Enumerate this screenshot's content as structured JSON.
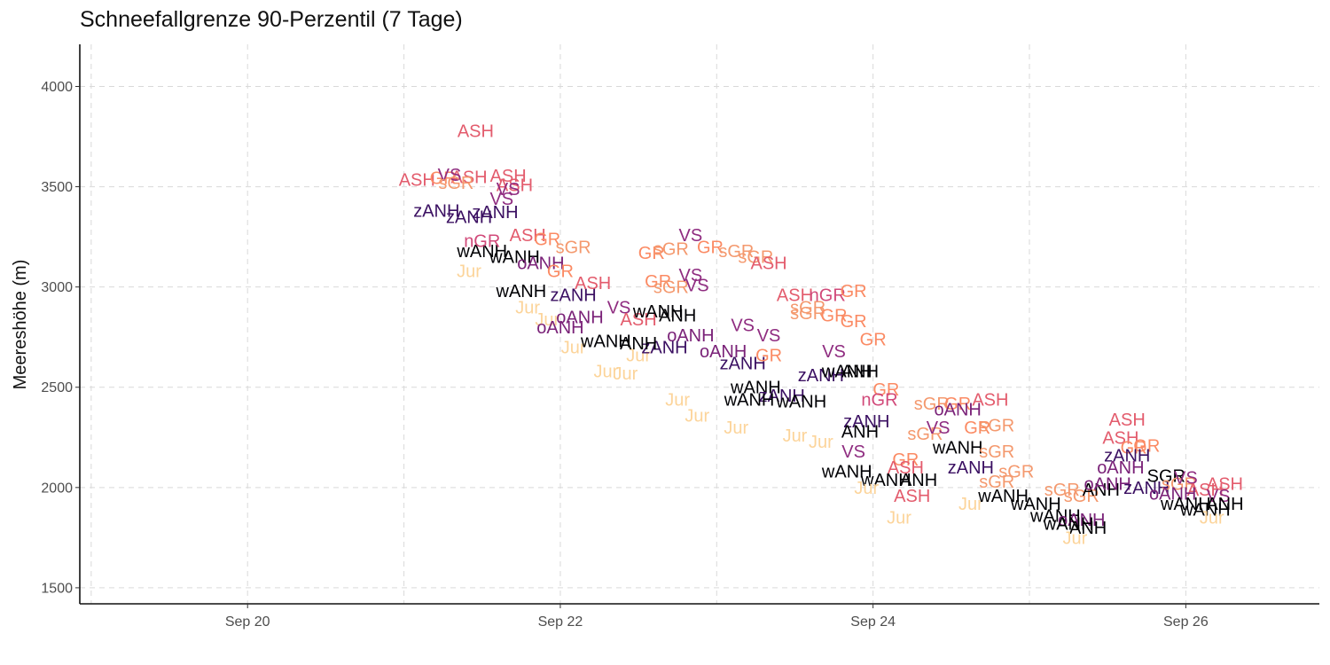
{
  "chart_data": {
    "type": "scatter",
    "title": "Schneefallgrenze 90-Perzentil (7 Tage)",
    "xlabel": "",
    "ylabel": "Meereshöhe (m)",
    "x_ticks": [
      "Sep 20",
      "Sep 22",
      "Sep 24",
      "Sep 26"
    ],
    "y_ticks": [
      1500,
      2000,
      2500,
      3000,
      3500,
      4000
    ],
    "xlim": [
      "2023-09-18T22:15",
      "2023-09-26T20:30"
    ],
    "ylim": [
      1420,
      4210
    ],
    "grid": true,
    "legend": "none",
    "marker": "region-abbreviation text",
    "regions": [
      "ASH",
      "GR",
      "nGR",
      "sGR",
      "VS",
      "oANH",
      "zANH",
      "wANH",
      "Jur"
    ],
    "colors": {
      "ASH": "#e35c6d",
      "GR": "#fb8a63",
      "nGR": "#d14a7a",
      "sGR": "#f4996e",
      "VS": "#8f2c80",
      "oANH": "#7a2278",
      "zANH": "#3b1062",
      "wANH": "#000004",
      "Jur": "#fcd49a"
    },
    "points": [
      {
        "x": "2023-09-21T11:00",
        "y": 3780,
        "label": "ASH"
      },
      {
        "x": "2023-09-21T10:00",
        "y": 3550,
        "label": "ASH"
      },
      {
        "x": "2023-09-21T16:00",
        "y": 3555,
        "label": "ASH"
      },
      {
        "x": "2023-09-21T17:00",
        "y": 3510,
        "label": "ASH"
      },
      {
        "x": "2023-09-21T02:00",
        "y": 3535,
        "label": "ASH"
      },
      {
        "x": "2023-09-21T06:00",
        "y": 3545,
        "label": "GR"
      },
      {
        "x": "2023-09-21T07:00",
        "y": 3560,
        "label": "VS"
      },
      {
        "x": "2023-09-21T08:00",
        "y": 3520,
        "label": "sGR"
      },
      {
        "x": "2023-09-21T05:00",
        "y": 3380,
        "label": "zANH"
      },
      {
        "x": "2023-09-21T14:00",
        "y": 3375,
        "label": "zANH"
      },
      {
        "x": "2023-09-21T10:00",
        "y": 3350,
        "label": "zANH"
      },
      {
        "x": "2023-09-21T15:00",
        "y": 3440,
        "label": "VS"
      },
      {
        "x": "2023-09-21T16:00",
        "y": 3490,
        "label": "VS"
      },
      {
        "x": "2023-09-21T12:00",
        "y": 3180,
        "label": "wANH"
      },
      {
        "x": "2023-09-21T10:00",
        "y": 3080,
        "label": "Jur"
      },
      {
        "x": "2023-09-21T12:00",
        "y": 3230,
        "label": "nGR"
      },
      {
        "x": "2023-09-21T19:00",
        "y": 3260,
        "label": "ASH"
      },
      {
        "x": "2023-09-21T22:00",
        "y": 3240,
        "label": "GR"
      },
      {
        "x": "2023-09-22T02:00",
        "y": 3200,
        "label": "sGR"
      },
      {
        "x": "2023-09-21T17:00",
        "y": 3150,
        "label": "wANH"
      },
      {
        "x": "2023-09-21T21:00",
        "y": 3120,
        "label": "oANH"
      },
      {
        "x": "2023-09-22T00:00",
        "y": 3080,
        "label": "GR"
      },
      {
        "x": "2023-09-21T18:00",
        "y": 2980,
        "label": "wANH"
      },
      {
        "x": "2023-09-21T19:00",
        "y": 2900,
        "label": "Jur"
      },
      {
        "x": "2023-09-21T22:00",
        "y": 2840,
        "label": "Jur"
      },
      {
        "x": "2023-09-22T02:00",
        "y": 2960,
        "label": "zANH"
      },
      {
        "x": "2023-09-22T05:00",
        "y": 3020,
        "label": "ASH"
      },
      {
        "x": "2023-09-22T09:00",
        "y": 2900,
        "label": "VS"
      },
      {
        "x": "2023-09-22T03:00",
        "y": 2850,
        "label": "oANH"
      },
      {
        "x": "2023-09-22T00:00",
        "y": 2800,
        "label": "oANH"
      },
      {
        "x": "2023-09-22T02:00",
        "y": 2700,
        "label": "Jur"
      },
      {
        "x": "2023-09-22T07:00",
        "y": 2730,
        "label": "wANH"
      },
      {
        "x": "2023-09-22T12:00",
        "y": 2840,
        "label": "ASH"
      },
      {
        "x": "2023-09-22T15:00",
        "y": 2880,
        "label": "wANH"
      },
      {
        "x": "2023-09-22T18:00",
        "y": 2860,
        "label": "ANH"
      },
      {
        "x": "2023-09-22T07:00",
        "y": 2580,
        "label": "Jur"
      },
      {
        "x": "2023-09-22T10:00",
        "y": 2570,
        "label": "Jur"
      },
      {
        "x": "2023-09-22T12:00",
        "y": 2660,
        "label": "Jur"
      },
      {
        "x": "2023-09-22T15:00",
        "y": 3030,
        "label": "GR"
      },
      {
        "x": "2023-09-22T17:00",
        "y": 3000,
        "label": "sGR"
      },
      {
        "x": "2023-09-22T21:00",
        "y": 3010,
        "label": "VS"
      },
      {
        "x": "2023-09-22T14:00",
        "y": 3170,
        "label": "GR"
      },
      {
        "x": "2023-09-22T17:00",
        "y": 3190,
        "label": "sGR"
      },
      {
        "x": "2023-09-22T20:00",
        "y": 3260,
        "label": "VS"
      },
      {
        "x": "2023-09-22T23:00",
        "y": 3200,
        "label": "GR"
      },
      {
        "x": "2023-09-23T03:00",
        "y": 3180,
        "label": "sGR"
      },
      {
        "x": "2023-09-23T06:00",
        "y": 3150,
        "label": "sGR"
      },
      {
        "x": "2023-09-23T08:00",
        "y": 3120,
        "label": "ASH"
      },
      {
        "x": "2023-09-22T20:00",
        "y": 3060,
        "label": "VS"
      },
      {
        "x": "2023-09-22T20:00",
        "y": 2760,
        "label": "oANH"
      },
      {
        "x": "2023-09-22T16:00",
        "y": 2700,
        "label": "zANH"
      },
      {
        "x": "2023-09-22T12:00",
        "y": 2720,
        "label": "ANH"
      },
      {
        "x": "2023-09-22T18:00",
        "y": 2440,
        "label": "Jur"
      },
      {
        "x": "2023-09-22T21:00",
        "y": 2360,
        "label": "Jur"
      },
      {
        "x": "2023-09-23T01:00",
        "y": 2680,
        "label": "oANH"
      },
      {
        "x": "2023-09-23T04:00",
        "y": 2620,
        "label": "zANH"
      },
      {
        "x": "2023-09-23T04:00",
        "y": 2810,
        "label": "VS"
      },
      {
        "x": "2023-09-23T08:00",
        "y": 2760,
        "label": "VS"
      },
      {
        "x": "2023-09-23T08:00",
        "y": 2660,
        "label": "GR"
      },
      {
        "x": "2023-09-23T06:00",
        "y": 2500,
        "label": "wANH"
      },
      {
        "x": "2023-09-23T10:00",
        "y": 2460,
        "label": "zANH"
      },
      {
        "x": "2023-09-23T03:00",
        "y": 2300,
        "label": "Jur"
      },
      {
        "x": "2023-09-23T05:00",
        "y": 2440,
        "label": "wANH"
      },
      {
        "x": "2023-09-23T13:00",
        "y": 2430,
        "label": "wANH"
      },
      {
        "x": "2023-09-23T12:00",
        "y": 2960,
        "label": "ASH"
      },
      {
        "x": "2023-09-23T14:00",
        "y": 2900,
        "label": "sGR"
      },
      {
        "x": "2023-09-23T17:00",
        "y": 2960,
        "label": "nGR"
      },
      {
        "x": "2023-09-23T21:00",
        "y": 2980,
        "label": "GR"
      },
      {
        "x": "2023-09-23T14:00",
        "y": 2870,
        "label": "sGR"
      },
      {
        "x": "2023-09-23T18:00",
        "y": 2860,
        "label": "GR"
      },
      {
        "x": "2023-09-23T21:00",
        "y": 2830,
        "label": "GR"
      },
      {
        "x": "2023-09-23T16:00",
        "y": 2560,
        "label": "zANH"
      },
      {
        "x": "2023-09-23T18:00",
        "y": 2680,
        "label": "VS"
      },
      {
        "x": "2023-09-23T20:00",
        "y": 2580,
        "label": "wANH"
      },
      {
        "x": "2023-09-23T12:00",
        "y": 2260,
        "label": "Jur"
      },
      {
        "x": "2023-09-23T16:00",
        "y": 2230,
        "label": "Jur"
      },
      {
        "x": "2023-09-24T00:00",
        "y": 2740,
        "label": "GR"
      },
      {
        "x": "2023-09-23T22:00",
        "y": 2580,
        "label": "ANH"
      },
      {
        "x": "2023-09-24T02:00",
        "y": 2490,
        "label": "GR"
      },
      {
        "x": "2023-09-24T01:00",
        "y": 2440,
        "label": "nGR"
      },
      {
        "x": "2023-09-23T23:00",
        "y": 2330,
        "label": "zANH"
      },
      {
        "x": "2023-09-23T22:00",
        "y": 2280,
        "label": "ANH"
      },
      {
        "x": "2023-09-23T21:00",
        "y": 2180,
        "label": "VS"
      },
      {
        "x": "2023-09-23T20:00",
        "y": 2080,
        "label": "wANH"
      },
      {
        "x": "2023-09-24T02:00",
        "y": 2040,
        "label": "wANH"
      },
      {
        "x": "2023-09-23T23:00",
        "y": 2000,
        "label": "Jur"
      },
      {
        "x": "2023-09-24T05:00",
        "y": 2140,
        "label": "GR"
      },
      {
        "x": "2023-09-24T08:00",
        "y": 2270,
        "label": "sGR"
      },
      {
        "x": "2023-09-24T09:00",
        "y": 2420,
        "label": "sGR"
      },
      {
        "x": "2023-09-24T13:00",
        "y": 2420,
        "label": "GR"
      },
      {
        "x": "2023-09-24T18:00",
        "y": 2440,
        "label": "ASH"
      },
      {
        "x": "2023-09-24T13:00",
        "y": 2390,
        "label": "oANH"
      },
      {
        "x": "2023-09-24T10:00",
        "y": 2300,
        "label": "VS"
      },
      {
        "x": "2023-09-24T13:00",
        "y": 2200,
        "label": "wANH"
      },
      {
        "x": "2023-09-24T05:00",
        "y": 2100,
        "label": "ASH"
      },
      {
        "x": "2023-09-24T07:00",
        "y": 2040,
        "label": "ANH"
      },
      {
        "x": "2023-09-24T06:00",
        "y": 1960,
        "label": "ASH"
      },
      {
        "x": "2023-09-24T04:00",
        "y": 1850,
        "label": "Jur"
      },
      {
        "x": "2023-09-24T16:00",
        "y": 2300,
        "label": "GR"
      },
      {
        "x": "2023-09-24T19:00",
        "y": 2310,
        "label": "sGR"
      },
      {
        "x": "2023-09-24T19:00",
        "y": 2180,
        "label": "sGR"
      },
      {
        "x": "2023-09-24T15:00",
        "y": 2100,
        "label": "zANH"
      },
      {
        "x": "2023-09-24T22:00",
        "y": 2080,
        "label": "sGR"
      },
      {
        "x": "2023-09-24T19:00",
        "y": 2030,
        "label": "sGR"
      },
      {
        "x": "2023-09-24T15:00",
        "y": 1920,
        "label": "Jur"
      },
      {
        "x": "2023-09-24T20:00",
        "y": 1960,
        "label": "wANH"
      },
      {
        "x": "2023-09-25T01:00",
        "y": 1920,
        "label": "wANH"
      },
      {
        "x": "2023-09-25T05:00",
        "y": 1990,
        "label": "sGR"
      },
      {
        "x": "2023-09-25T08:00",
        "y": 1960,
        "label": "sGR"
      },
      {
        "x": "2023-09-25T11:00",
        "y": 1990,
        "label": "ANH"
      },
      {
        "x": "2023-09-25T04:00",
        "y": 1860,
        "label": "wANH"
      },
      {
        "x": "2023-09-25T08:00",
        "y": 1840,
        "label": "oANH"
      },
      {
        "x": "2023-09-25T06:00",
        "y": 1820,
        "label": "wANH"
      },
      {
        "x": "2023-09-25T09:00",
        "y": 1800,
        "label": "ANH"
      },
      {
        "x": "2023-09-25T07:00",
        "y": 1750,
        "label": "Jur"
      },
      {
        "x": "2023-09-25T15:00",
        "y": 2340,
        "label": "ASH"
      },
      {
        "x": "2023-09-25T14:00",
        "y": 2250,
        "label": "ASH"
      },
      {
        "x": "2023-09-25T16:00",
        "y": 2200,
        "label": "GR"
      },
      {
        "x": "2023-09-25T18:00",
        "y": 2210,
        "label": "GR"
      },
      {
        "x": "2023-09-25T15:00",
        "y": 2160,
        "label": "zANH"
      },
      {
        "x": "2023-09-25T14:00",
        "y": 2100,
        "label": "oANH"
      },
      {
        "x": "2023-09-25T12:00",
        "y": 2020,
        "label": "oANH"
      },
      {
        "x": "2023-09-25T18:00",
        "y": 2000,
        "label": "zANH"
      },
      {
        "x": "2023-09-25T21:00",
        "y": 2060,
        "label": "SGR"
      },
      {
        "x": "2023-09-25T23:00",
        "y": 2020,
        "label": "sGR"
      },
      {
        "x": "2023-09-26T00:00",
        "y": 2050,
        "label": "VS"
      },
      {
        "x": "2023-09-26T03:00",
        "y": 1990,
        "label": "ASH"
      },
      {
        "x": "2023-09-26T06:00",
        "y": 2020,
        "label": "ASH"
      },
      {
        "x": "2023-09-26T05:00",
        "y": 1960,
        "label": "VS"
      },
      {
        "x": "2023-09-25T22:00",
        "y": 1970,
        "label": "oANH"
      },
      {
        "x": "2023-09-26T00:00",
        "y": 1920,
        "label": "wANH"
      },
      {
        "x": "2023-09-26T03:00",
        "y": 1890,
        "label": "wANH"
      },
      {
        "x": "2023-09-26T06:00",
        "y": 1920,
        "label": "ANH"
      },
      {
        "x": "2023-09-26T04:00",
        "y": 1850,
        "label": "Jur"
      }
    ]
  }
}
